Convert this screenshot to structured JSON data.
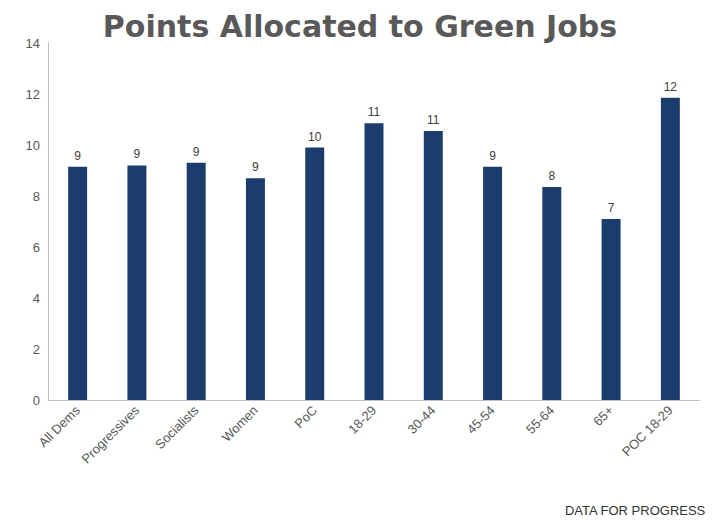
{
  "chart_data": {
    "type": "bar",
    "title": "Points Allocated to Green Jobs",
    "categories": [
      "All Dems",
      "Progressives",
      "Socialists",
      "Women",
      "PoC",
      "18-29",
      "30-44",
      "45-54",
      "55-64",
      "65+",
      "POC 18-29"
    ],
    "values": [
      9.15,
      9.2,
      9.3,
      8.7,
      9.9,
      10.85,
      10.55,
      9.15,
      8.35,
      7.1,
      11.85
    ],
    "value_labels": [
      "9",
      "9",
      "9",
      "9",
      "10",
      "11",
      "11",
      "9",
      "8",
      "7",
      "12"
    ],
    "color": "#1b3d6e",
    "ylim": [
      0,
      14
    ],
    "yticks": [
      0,
      2,
      4,
      6,
      8,
      10,
      12,
      14
    ],
    "grid": false,
    "data_labels": true,
    "source": "DATA FOR PROGRESS"
  }
}
